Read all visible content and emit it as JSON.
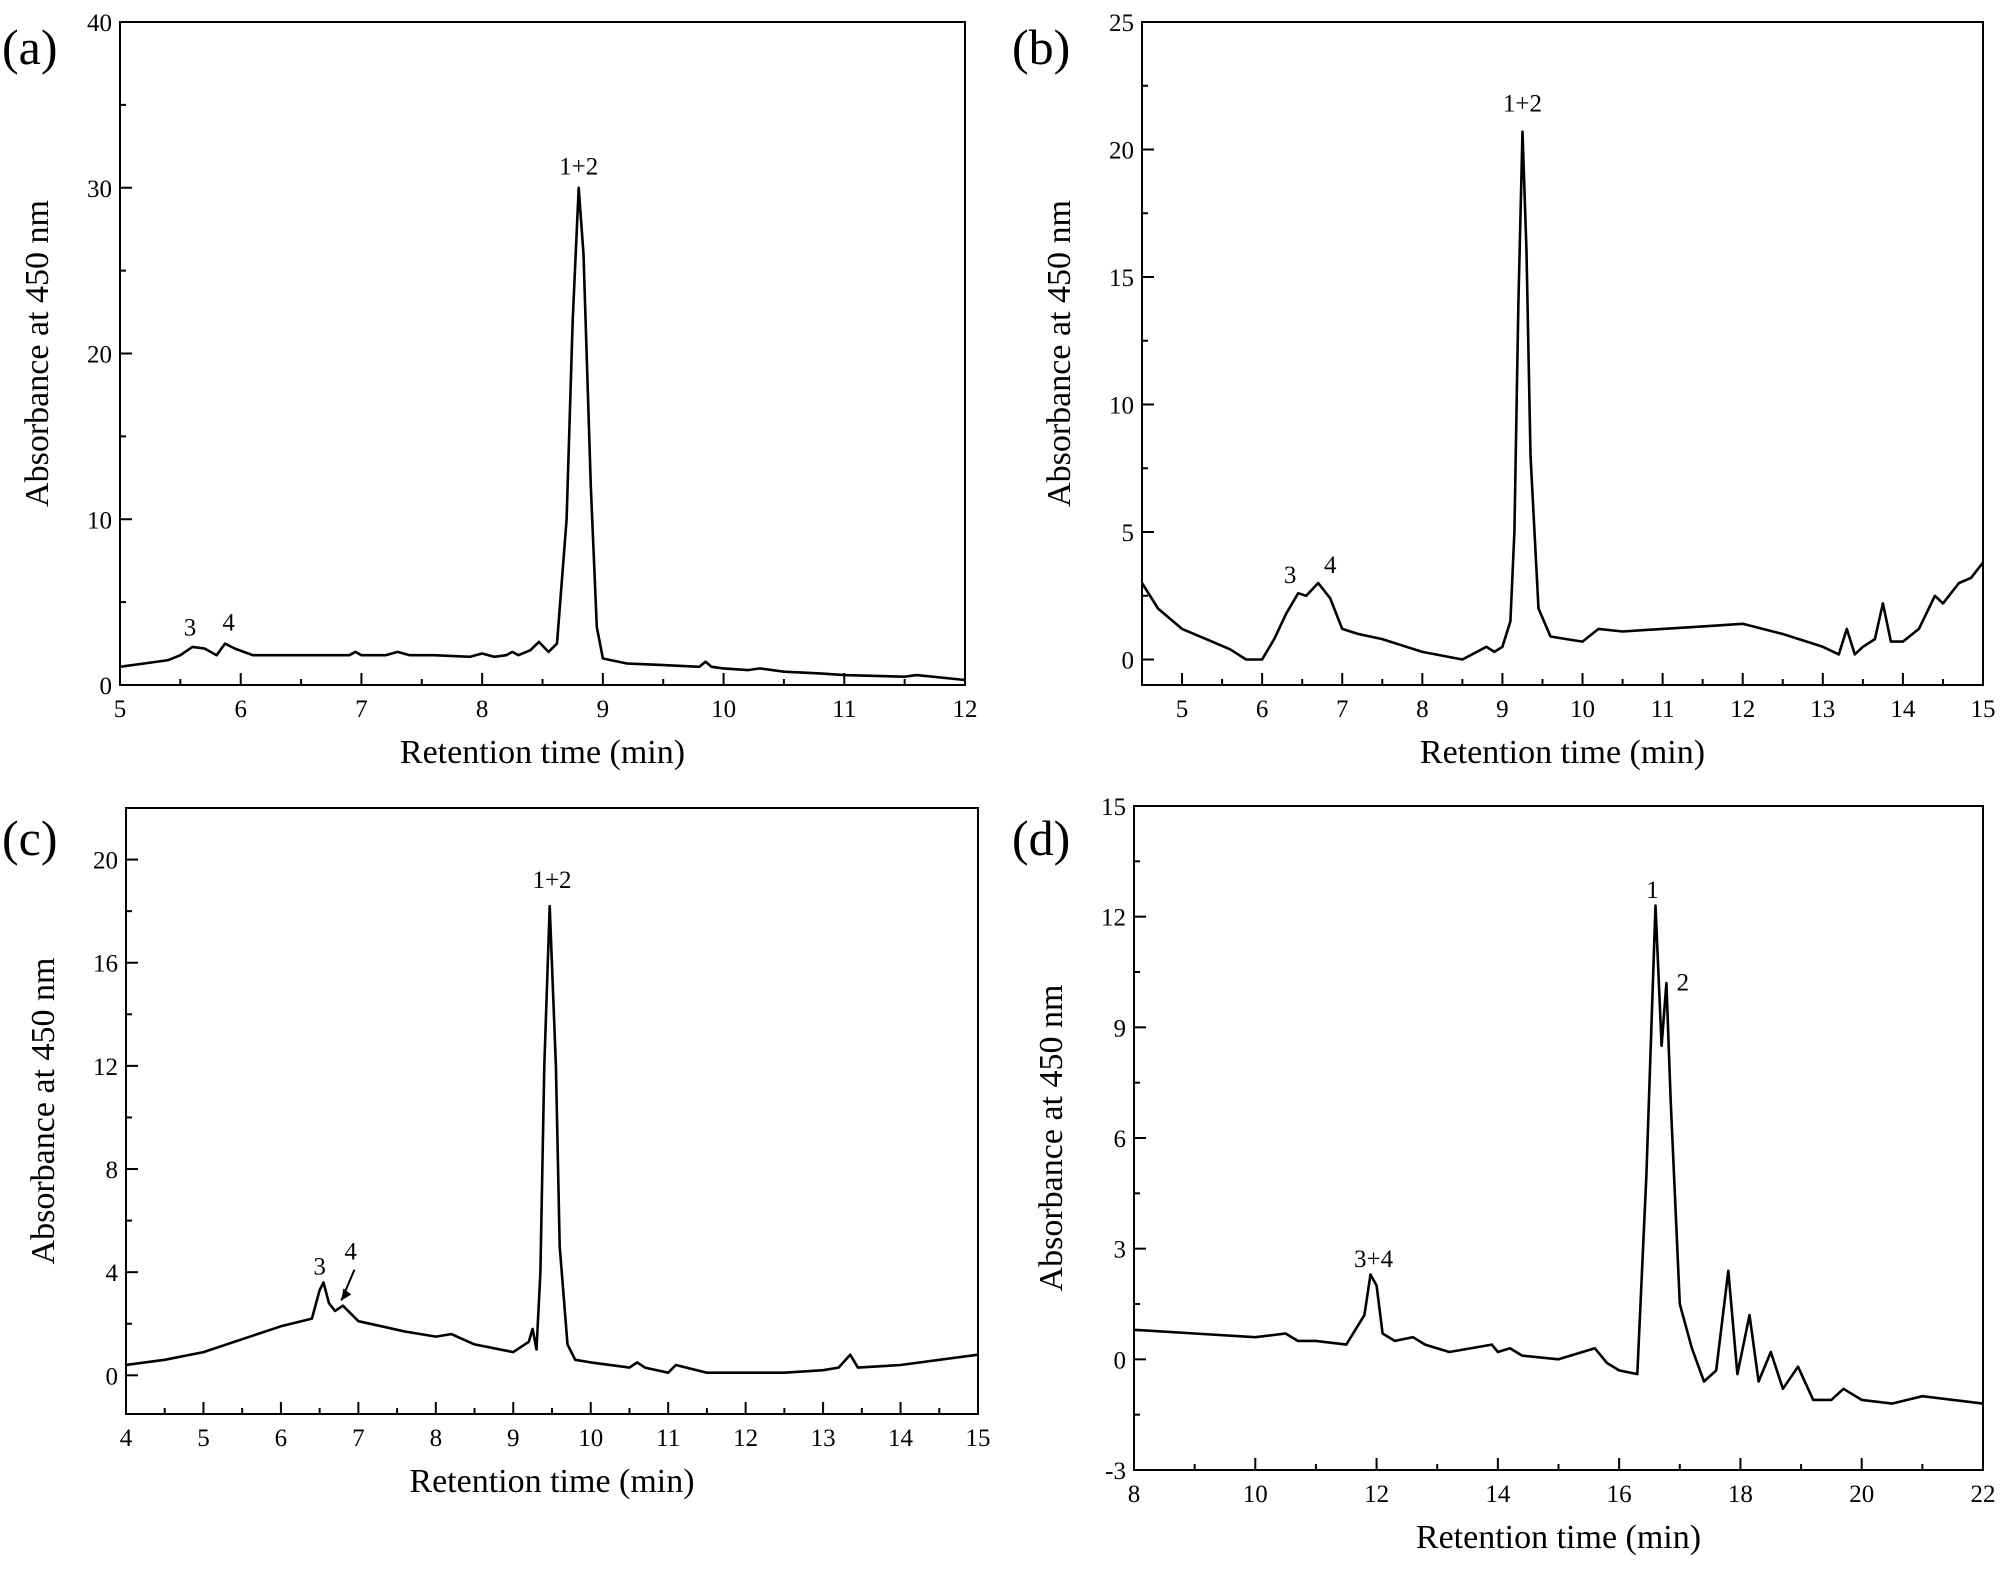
{
  "chart_data": [
    {
      "type": "line",
      "panel_label": "(a)",
      "xlabel": "Retention time (min)",
      "ylabel": "Absorbance at 450 nm",
      "xlim": [
        5,
        12
      ],
      "ylim": [
        0,
        40
      ],
      "xticks": [
        5,
        6,
        7,
        8,
        9,
        10,
        11,
        12
      ],
      "yticks": [
        0,
        10,
        20,
        30,
        40
      ],
      "series": [
        {
          "x": [
            5.0,
            5.2,
            5.4,
            5.5,
            5.6,
            5.7,
            5.8,
            5.87,
            5.95,
            6.1,
            6.5,
            6.9,
            6.95,
            7.0,
            7.2,
            7.3,
            7.4,
            7.6,
            7.9,
            8.0,
            8.1,
            8.2,
            8.25,
            8.3,
            8.4,
            8.47,
            8.55,
            8.62,
            8.7,
            8.75,
            8.8,
            8.84,
            8.9,
            8.95,
            9.0,
            9.2,
            9.5,
            9.8,
            9.85,
            9.9,
            10.0,
            10.2,
            10.3,
            10.5,
            10.8,
            11.0,
            11.5,
            11.6,
            12.0
          ],
          "y": [
            1.1,
            1.3,
            1.5,
            1.8,
            2.3,
            2.2,
            1.8,
            2.5,
            2.2,
            1.8,
            1.8,
            1.8,
            2.0,
            1.8,
            1.8,
            2.0,
            1.8,
            1.8,
            1.7,
            1.9,
            1.7,
            1.8,
            2.0,
            1.8,
            2.1,
            2.6,
            2.0,
            2.5,
            10.0,
            22.0,
            30.0,
            26.0,
            12.0,
            3.5,
            1.6,
            1.3,
            1.2,
            1.1,
            1.4,
            1.1,
            1.0,
            0.9,
            1.0,
            0.8,
            0.7,
            0.6,
            0.5,
            0.6,
            0.3
          ]
        }
      ],
      "annotations": [
        {
          "text": "3",
          "x": 5.58,
          "y": 3.0
        },
        {
          "text": "4",
          "x": 5.9,
          "y": 3.3
        },
        {
          "text": "1+2",
          "x": 8.8,
          "y": 30.8
        }
      ]
    },
    {
      "type": "line",
      "panel_label": "(b)",
      "xlabel": "Retention time (min)",
      "ylabel": "Absorbance at 450 nm",
      "xlim": [
        4.5,
        15
      ],
      "ylim": [
        -1,
        25
      ],
      "xticks": [
        5,
        6,
        7,
        8,
        9,
        10,
        11,
        12,
        13,
        14,
        15
      ],
      "yticks": [
        0,
        5,
        10,
        15,
        20,
        25
      ],
      "series": [
        {
          "x": [
            4.5,
            4.7,
            5.0,
            5.3,
            5.6,
            5.8,
            6.0,
            6.15,
            6.3,
            6.45,
            6.55,
            6.7,
            6.85,
            7.0,
            7.2,
            7.5,
            8.0,
            8.5,
            8.8,
            8.9,
            9.0,
            9.1,
            9.15,
            9.2,
            9.25,
            9.3,
            9.35,
            9.45,
            9.6,
            9.8,
            10.0,
            10.2,
            10.5,
            11.0,
            11.5,
            12.0,
            12.5,
            13.0,
            13.2,
            13.3,
            13.4,
            13.5,
            13.65,
            13.75,
            13.85,
            14.0,
            14.2,
            14.4,
            14.5,
            14.7,
            14.85,
            15.0
          ],
          "y": [
            3.0,
            2.0,
            1.2,
            0.8,
            0.4,
            0.0,
            0.0,
            0.8,
            1.8,
            2.6,
            2.5,
            3.0,
            2.4,
            1.2,
            1.0,
            0.8,
            0.3,
            0.0,
            0.5,
            0.3,
            0.5,
            1.5,
            5.0,
            14.0,
            20.7,
            16.0,
            8.0,
            2.0,
            0.9,
            0.8,
            0.7,
            1.2,
            1.1,
            1.2,
            1.3,
            1.4,
            1.0,
            0.5,
            0.2,
            1.2,
            0.2,
            0.5,
            0.8,
            2.2,
            0.7,
            0.7,
            1.2,
            2.5,
            2.2,
            3.0,
            3.2,
            3.8
          ]
        }
      ],
      "annotations": [
        {
          "text": "3",
          "x": 6.35,
          "y": 3.0
        },
        {
          "text": "4",
          "x": 6.85,
          "y": 3.4
        },
        {
          "text": "1+2",
          "x": 9.25,
          "y": 21.5
        }
      ]
    },
    {
      "type": "line",
      "panel_label": "(c)",
      "xlabel": "Retention time (min)",
      "ylabel": "Absorbance at 450 nm",
      "xlim": [
        4,
        15
      ],
      "ylim": [
        -1.5,
        22
      ],
      "xticks": [
        4,
        5,
        6,
        7,
        8,
        9,
        10,
        11,
        12,
        13,
        14,
        15
      ],
      "yticks": [
        0,
        4,
        8,
        12,
        16,
        20
      ],
      "series": [
        {
          "x": [
            4.0,
            4.5,
            5.0,
            5.5,
            6.0,
            6.4,
            6.5,
            6.55,
            6.62,
            6.7,
            6.8,
            6.9,
            7.0,
            7.3,
            7.6,
            8.0,
            8.2,
            8.5,
            9.0,
            9.2,
            9.25,
            9.3,
            9.35,
            9.4,
            9.47,
            9.55,
            9.6,
            9.7,
            9.8,
            10.0,
            10.5,
            10.6,
            10.7,
            11.0,
            11.1,
            11.5,
            12.0,
            12.5,
            13.0,
            13.2,
            13.35,
            13.45,
            14.0,
            15.0
          ],
          "y": [
            0.4,
            0.6,
            0.9,
            1.4,
            1.9,
            2.2,
            3.3,
            3.6,
            2.8,
            2.5,
            2.7,
            2.4,
            2.1,
            1.9,
            1.7,
            1.5,
            1.6,
            1.2,
            0.9,
            1.3,
            1.8,
            1.0,
            4.0,
            12.0,
            18.2,
            12.0,
            5.0,
            1.2,
            0.6,
            0.5,
            0.3,
            0.5,
            0.3,
            0.1,
            0.4,
            0.1,
            0.1,
            0.1,
            0.2,
            0.3,
            0.8,
            0.3,
            0.4,
            0.8
          ]
        }
      ],
      "annotations": [
        {
          "text": "3",
          "x": 6.5,
          "y": 3.9
        },
        {
          "text": "4",
          "x": 6.9,
          "y": 4.5
        },
        {
          "text": "1+2",
          "x": 9.5,
          "y": 18.9
        }
      ]
    },
    {
      "type": "line",
      "panel_label": "(d)",
      "xlabel": "Retention time (min)",
      "ylabel": "Absorbance at 450 nm",
      "xlim": [
        8,
        22
      ],
      "ylim": [
        -3,
        15
      ],
      "xticks": [
        8,
        10,
        12,
        14,
        16,
        18,
        20,
        22
      ],
      "yticks": [
        -3,
        0,
        3,
        6,
        9,
        12,
        15
      ],
      "series": [
        {
          "x": [
            8.0,
            9.0,
            10.0,
            10.5,
            10.7,
            11.0,
            11.5,
            11.8,
            11.9,
            12.0,
            12.1,
            12.3,
            12.6,
            12.8,
            13.2,
            13.9,
            14.0,
            14.2,
            14.4,
            15.0,
            15.6,
            15.8,
            16.0,
            16.3,
            16.45,
            16.6,
            16.7,
            16.78,
            16.85,
            17.0,
            17.2,
            17.4,
            17.6,
            17.8,
            17.95,
            18.15,
            18.3,
            18.5,
            18.7,
            18.95,
            19.2,
            19.5,
            19.7,
            20.0,
            20.5,
            21.0,
            22.0
          ],
          "y": [
            0.8,
            0.7,
            0.6,
            0.7,
            0.5,
            0.5,
            0.4,
            1.2,
            2.3,
            2.0,
            0.7,
            0.5,
            0.6,
            0.4,
            0.2,
            0.4,
            0.2,
            0.3,
            0.1,
            0.0,
            0.3,
            -0.1,
            -0.3,
            -0.4,
            5.0,
            12.3,
            8.5,
            10.2,
            7.0,
            1.5,
            0.3,
            -0.6,
            -0.3,
            2.4,
            -0.4,
            1.2,
            -0.6,
            0.2,
            -0.8,
            -0.2,
            -1.1,
            -1.1,
            -0.8,
            -1.1,
            -1.2,
            -1.0,
            -1.2
          ]
        }
      ],
      "annotations": [
        {
          "text": "3+4",
          "x": 11.95,
          "y": 2.5
        },
        {
          "text": "1",
          "x": 16.55,
          "y": 12.5
        },
        {
          "text": "2",
          "x": 17.05,
          "y": 10.0
        }
      ]
    }
  ]
}
